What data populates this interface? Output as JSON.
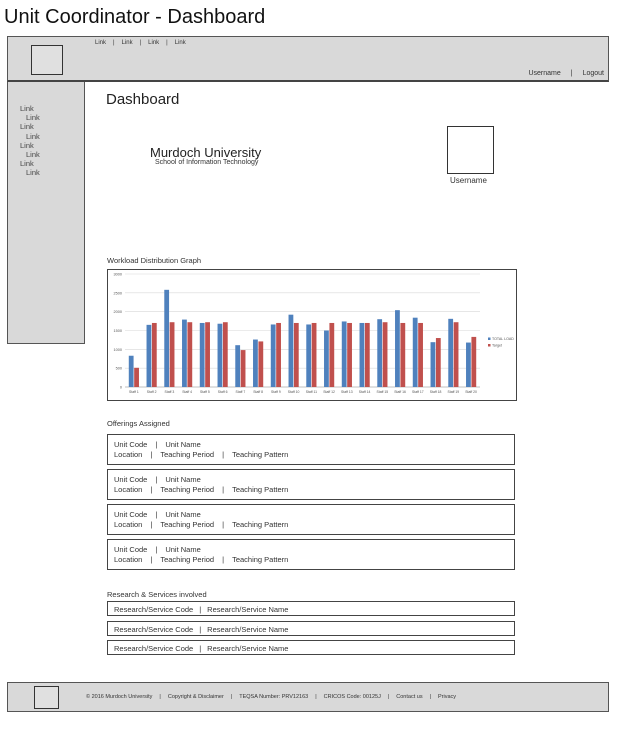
{
  "window_title": "Unit Coordinator - Dashboard",
  "header": {
    "nav_links": [
      "Link",
      "Link",
      "Link",
      "Link"
    ],
    "username": "Username",
    "logout": "Logout"
  },
  "sidebar": {
    "items": [
      {
        "label": "Link",
        "indent": false
      },
      {
        "label": "Link",
        "indent": true
      },
      {
        "label": "Link",
        "indent": false
      },
      {
        "label": "Link",
        "indent": true
      },
      {
        "label": "Link",
        "indent": false
      },
      {
        "label": "Link",
        "indent": true
      },
      {
        "label": "Link",
        "indent": false
      },
      {
        "label": "Link",
        "indent": true
      }
    ]
  },
  "main": {
    "title": "Dashboard",
    "university": "Murdoch University",
    "school": "School of Information Technology",
    "avatar_label": "Username",
    "graph_label": "Workload Distribution Graph",
    "offerings_label": "Offerings Assigned",
    "research_label": "Research & Services involved"
  },
  "offerings": [
    {
      "code": "Unit Code",
      "name": "Unit Name",
      "location": "Location",
      "period": "Teaching Period",
      "pattern": "Teaching Pattern"
    },
    {
      "code": "Unit Code",
      "name": "Unit Name",
      "location": "Location",
      "period": "Teaching Period",
      "pattern": "Teaching Pattern"
    },
    {
      "code": "Unit Code",
      "name": "Unit Name",
      "location": "Location",
      "period": "Teaching Period",
      "pattern": "Teaching Pattern"
    },
    {
      "code": "Unit Code",
      "name": "Unit Name",
      "location": "Location",
      "period": "Teaching Period",
      "pattern": "Teaching Pattern"
    }
  ],
  "research": [
    {
      "code": "Research/Service Code",
      "name": "Research/Service Name"
    },
    {
      "code": "Research/Service Code",
      "name": "Research/Service Name"
    },
    {
      "code": "Research/Service Code",
      "name": "Research/Service Name"
    }
  ],
  "footer": {
    "items": [
      "© 2016 Murdoch University",
      "Copyright & Disclaimer",
      "TEQSA Number: PRV12163",
      "CRICOS Code: 00125J",
      "Contact us",
      "Privacy"
    ]
  },
  "chart_data": {
    "type": "bar",
    "categories": [
      "Staff 1",
      "Staff 2",
      "Staff 3",
      "Staff 4",
      "Staff 5",
      "Staff 6",
      "Staff 7",
      "Staff 8",
      "Staff 9",
      "Staff 10",
      "Staff 11",
      "Staff 12",
      "Staff 13",
      "Staff 14",
      "Staff 15",
      "Staff 16",
      "Staff 17",
      "Staff 18",
      "Staff 19",
      "Staff 20"
    ],
    "series": [
      {
        "name": "TOTAL LOAD",
        "color": "#4f81bd",
        "values": [
          830,
          1650,
          2580,
          1790,
          1700,
          1680,
          1110,
          1260,
          1660,
          1920,
          1660,
          1500,
          1740,
          1700,
          1800,
          2040,
          1840,
          1190,
          1810,
          1180
        ]
      },
      {
        "name": "Target",
        "color": "#c0504d",
        "values": [
          510,
          1700,
          1720,
          1720,
          1720,
          1720,
          980,
          1210,
          1700,
          1700,
          1700,
          1700,
          1700,
          1700,
          1720,
          1700,
          1700,
          1300,
          1720,
          1330
        ]
      }
    ],
    "yticks": [
      "0",
      "500",
      "1000",
      "1500",
      "2000",
      "2500",
      "3000"
    ],
    "ylim": [
      0,
      3000
    ],
    "grid": true,
    "legend": "right"
  }
}
